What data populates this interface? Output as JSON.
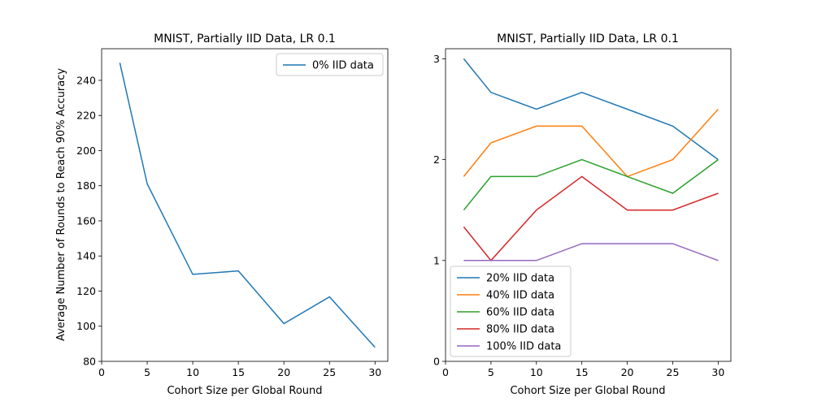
{
  "chart_data": [
    {
      "type": "line",
      "title": "MNIST, Partially IID Data, LR 0.1",
      "xlabel": "Cohort Size per Global Round",
      "ylabel": "Average Number of Rounds to Reach 90% Accuracy",
      "xlim": [
        0,
        31.4
      ],
      "ylim": [
        80,
        258
      ],
      "xticks": [
        0,
        5,
        10,
        15,
        20,
        25,
        30
      ],
      "yticks": [
        80,
        100,
        120,
        140,
        160,
        180,
        200,
        220,
        240
      ],
      "legend_position": "top-right",
      "x": [
        2,
        5,
        10,
        15,
        20,
        25,
        30
      ],
      "series": [
        {
          "name": "0% IID data",
          "color": "#1f77b4",
          "values": [
            250,
            181,
            129.5,
            131.5,
            101.5,
            116.7,
            88
          ]
        }
      ]
    },
    {
      "type": "line",
      "title": "MNIST, Partially IID Data, LR 0.1",
      "xlabel": "Cohort Size per Global Round",
      "ylabel": "",
      "xlim": [
        0,
        31.4
      ],
      "ylim": [
        0,
        3.1
      ],
      "xticks": [
        0,
        5,
        10,
        15,
        20,
        25,
        30
      ],
      "yticks": [
        0,
        1,
        2,
        3
      ],
      "legend_position": "bottom-left",
      "x": [
        2,
        5,
        10,
        15,
        20,
        25,
        30
      ],
      "series": [
        {
          "name": "20% IID data",
          "color": "#1f77b4",
          "values": [
            3.0,
            2.667,
            2.5,
            2.667,
            2.5,
            2.333,
            2.0
          ]
        },
        {
          "name": "40% IID data",
          "color": "#ff7f0e",
          "values": [
            1.833,
            2.167,
            2.333,
            2.333,
            1.833,
            2.0,
            2.5
          ]
        },
        {
          "name": "60% IID data",
          "color": "#2ca02c",
          "values": [
            1.5,
            1.833,
            1.833,
            2.0,
            1.833,
            1.667,
            2.0
          ]
        },
        {
          "name": "80% IID data",
          "color": "#d62728",
          "values": [
            1.333,
            1.0,
            1.5,
            1.833,
            1.5,
            1.5,
            1.667
          ]
        },
        {
          "name": "100% IID data",
          "color": "#9467bd",
          "values": [
            1.0,
            1.0,
            1.0,
            1.167,
            1.167,
            1.167,
            1.0
          ]
        }
      ]
    }
  ]
}
